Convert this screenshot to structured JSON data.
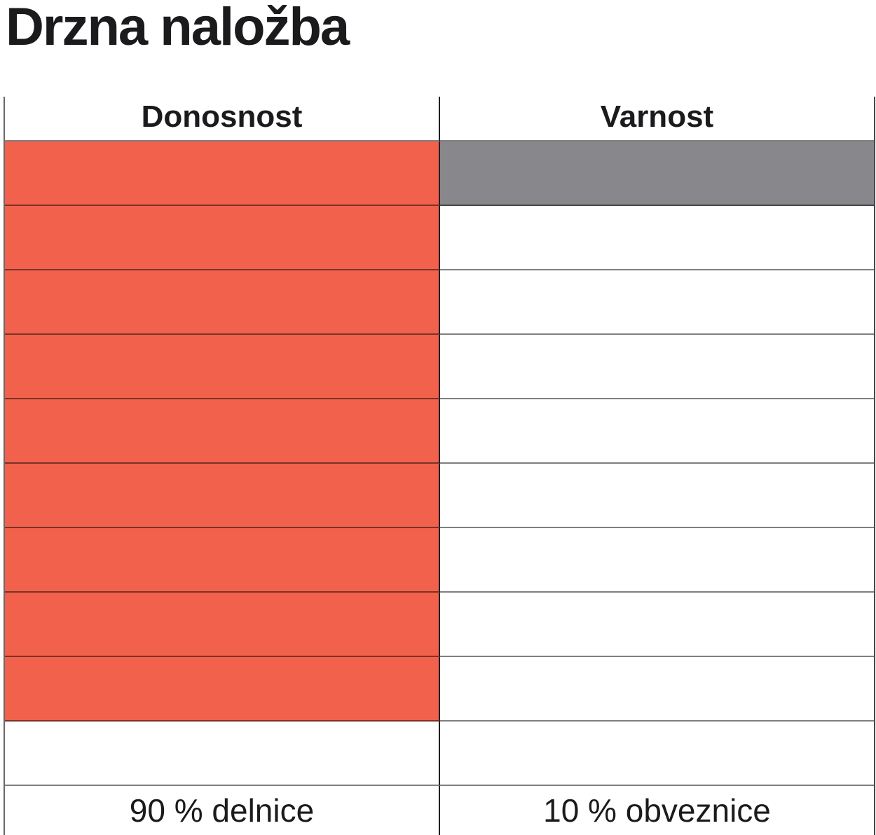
{
  "chart_data": {
    "type": "table",
    "title": "Drzna naložba",
    "columns": [
      "Donosnost",
      "Varnost"
    ],
    "rows_total": 10,
    "series": [
      {
        "name": "Donosnost",
        "filled_cells": 9,
        "fill_color": "#F2614B",
        "footer_label": "90 % delnice"
      },
      {
        "name": "Varnost",
        "filled_cells": 1,
        "fill_color": "#88888C",
        "footer_label": "10 % obveznice"
      }
    ],
    "legend_position": "none",
    "grid": true,
    "notes": "Each column is a 10-step vertical rating scale filled from the top"
  },
  "colors": {
    "accent_red": "#F2614B",
    "accent_gray": "#88888C",
    "divider": "#212123",
    "grid_line": "rgba(10,10,10,0.52)",
    "text": "#1B1B1D"
  }
}
